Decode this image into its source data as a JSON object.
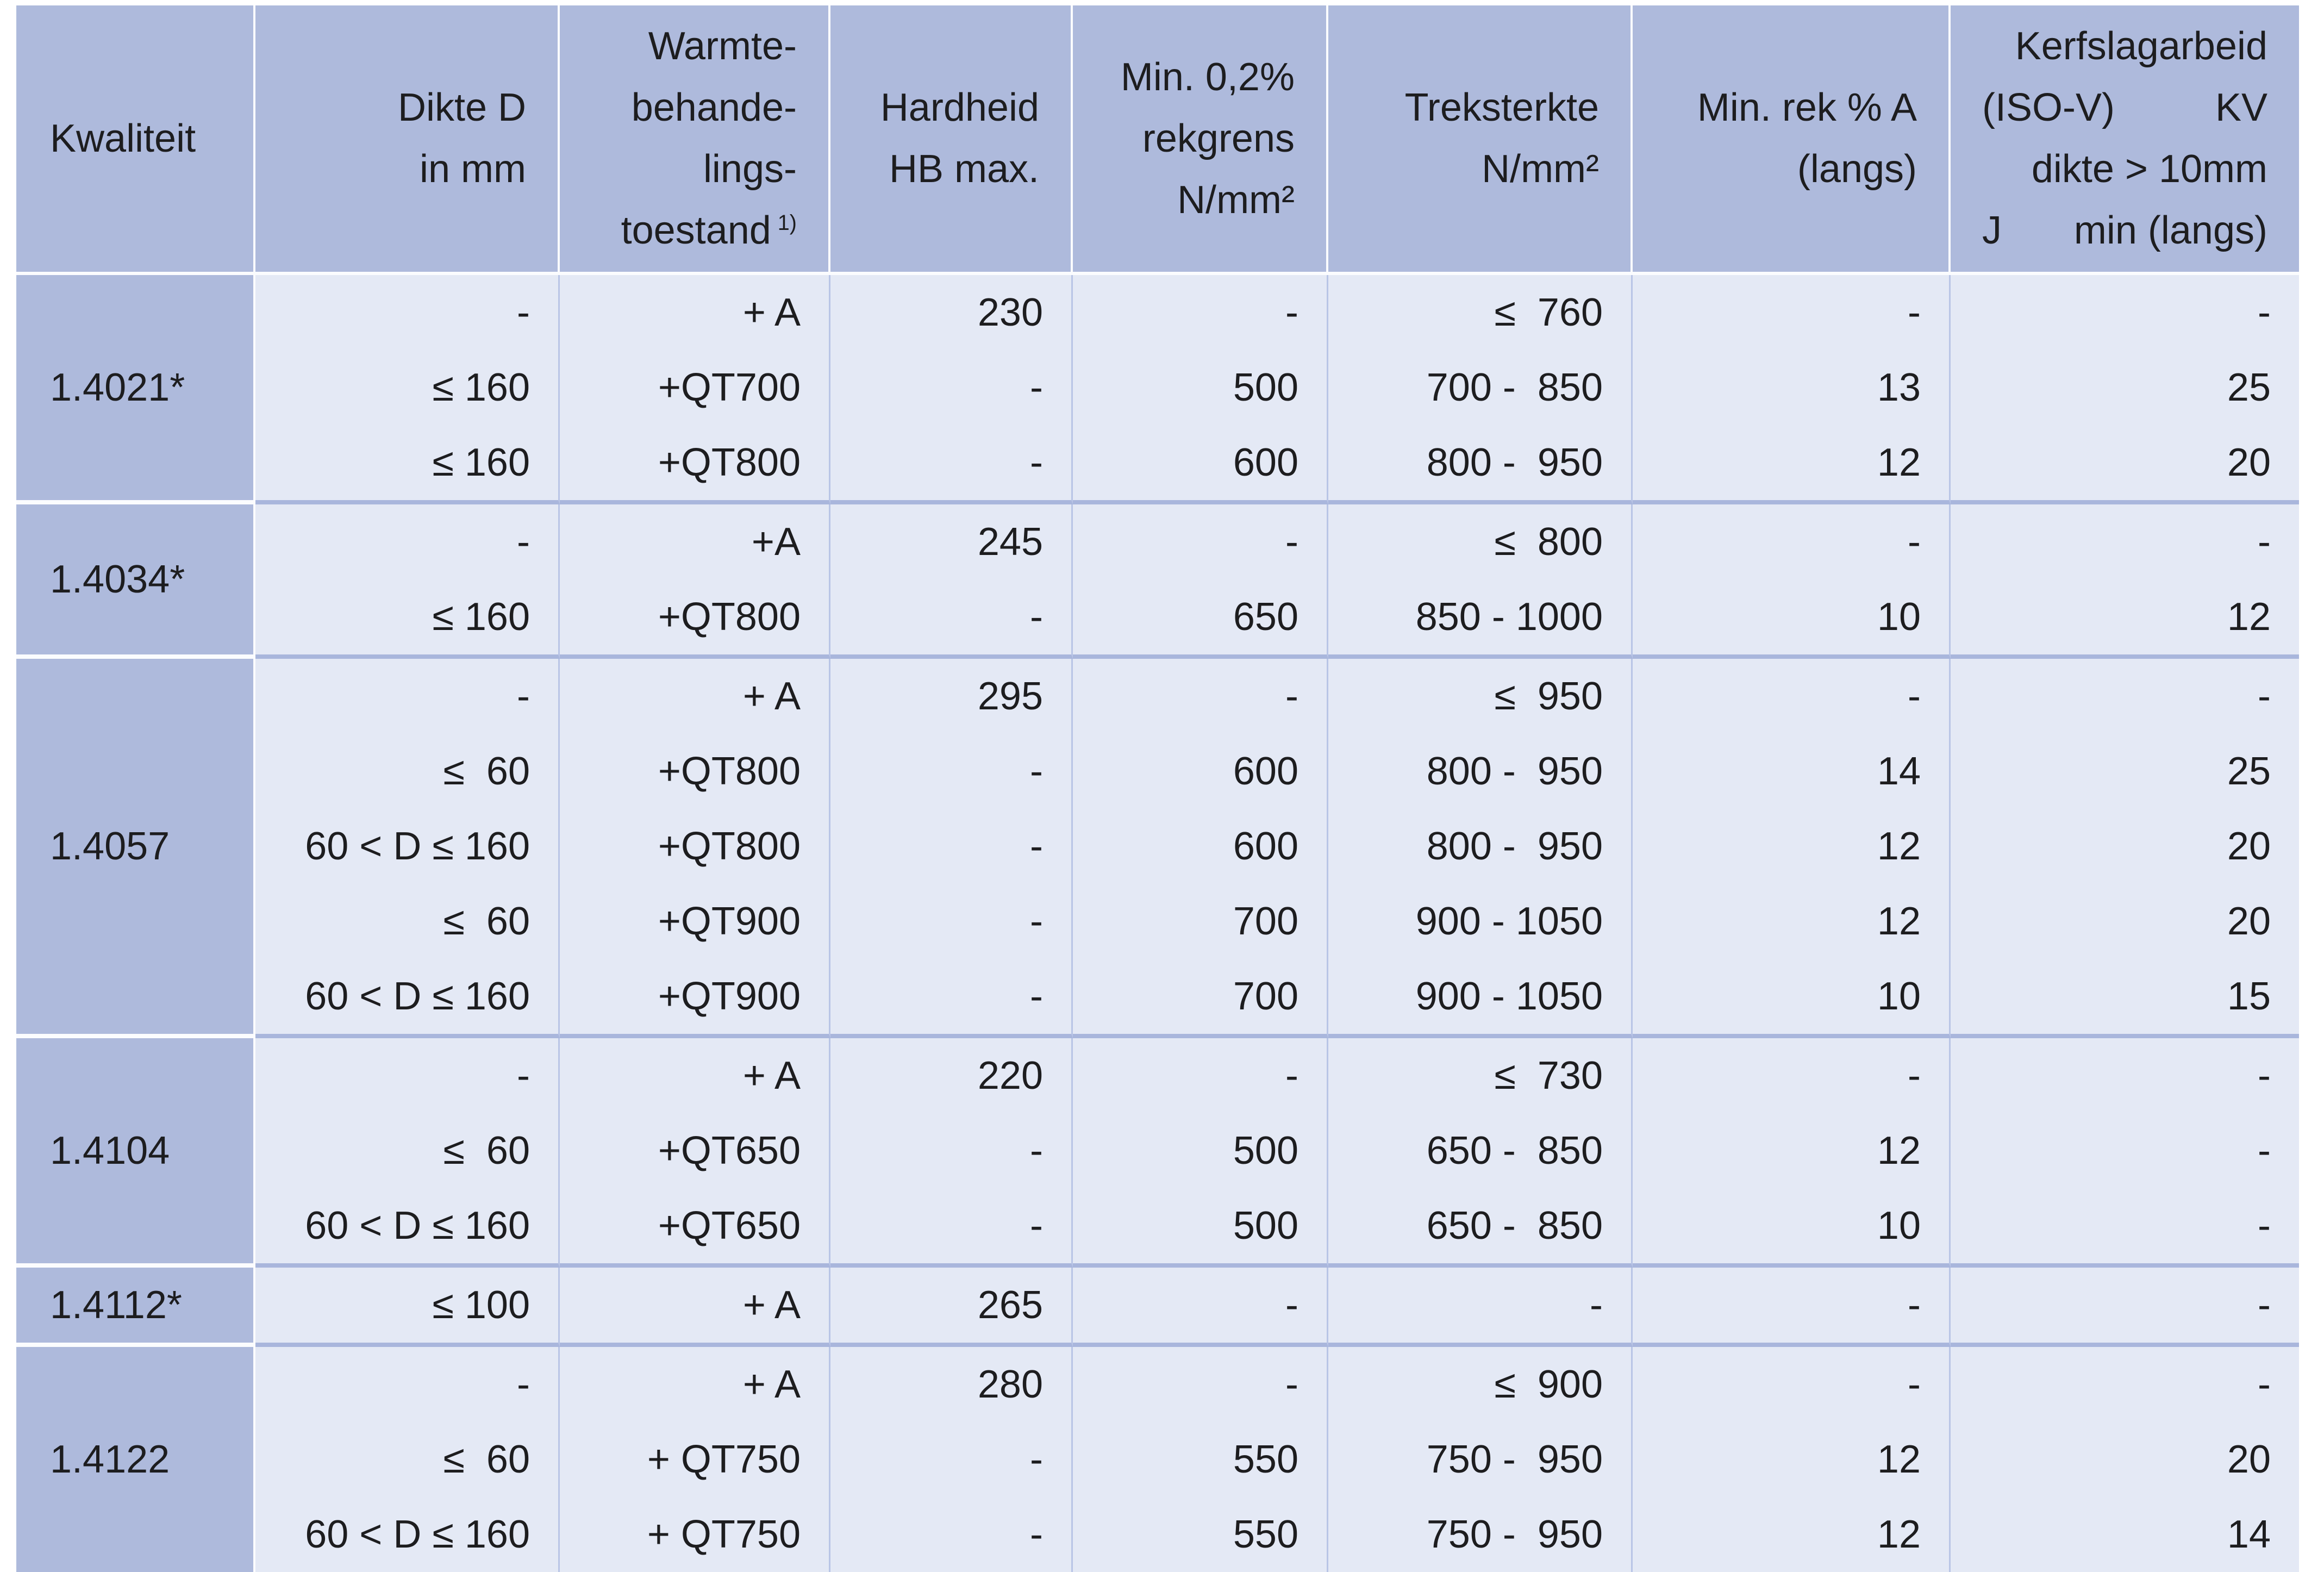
{
  "colors": {
    "header_bg": "#aebadc",
    "body_bg": "#e4e9f5",
    "group_separator": "#a9b6dc",
    "grid_line": "#b9c5e6",
    "white_line": "#fbfcfe",
    "text": "#1d1d1f",
    "page_bg": "#ffffff"
  },
  "header": {
    "kwaliteit": "Kwaliteit",
    "dikte_lines": [
      "Dikte D",
      "in mm"
    ],
    "warmte_lines": [
      "Warmte-",
      "behande-",
      "lings-"
    ],
    "warmte_last": "toestand",
    "warmte_footnote": "1)",
    "hardheid_lines": [
      "Hardheid",
      "HB max."
    ],
    "rekgrens_lines": [
      "Min. 0,2%",
      "rekgrens",
      "N/mm²"
    ],
    "treksterkte_lines": [
      "Treksterkte",
      "N/mm²"
    ],
    "rek_lines": [
      "Min. rek % A",
      "(langs)"
    ],
    "kerfslag": {
      "line1": "Kerfslagarbeid",
      "iso": "(ISO-V)",
      "kv": "KV",
      "line3": "dikte > 10mm",
      "j": "J",
      "min": "min (langs)"
    }
  },
  "table": {
    "column_keys": [
      "dikte",
      "warmte",
      "hardheid",
      "rekgrens",
      "treksterkte",
      "rek",
      "kv"
    ],
    "groups": [
      {
        "kwaliteit": "1.4021*",
        "rows": [
          [
            "-",
            "+ A",
            "230",
            "-",
            "≤  760",
            "-",
            "-"
          ],
          [
            "≤ 160",
            "+QT700",
            "-",
            "500",
            "700 -  850",
            "13",
            "25"
          ],
          [
            "≤ 160",
            "+QT800",
            "-",
            "600",
            "800 -  950",
            "12",
            "20"
          ]
        ]
      },
      {
        "kwaliteit": "1.4034*",
        "rows": [
          [
            "-",
            "+A",
            "245",
            "-",
            "≤  800",
            "-",
            "-"
          ],
          [
            "≤ 160",
            "+QT800",
            "-",
            "650",
            "850 - 1000",
            "10",
            "12"
          ]
        ]
      },
      {
        "kwaliteit": "1.4057",
        "rows": [
          [
            "-",
            "+ A",
            "295",
            "-",
            "≤  950",
            "-",
            "-"
          ],
          [
            "≤  60",
            "+QT800",
            "-",
            "600",
            "800 -  950",
            "14",
            "25"
          ],
          [
            "60 < D ≤ 160",
            "+QT800",
            "-",
            "600",
            "800 -  950",
            "12",
            "20"
          ],
          [
            "≤  60",
            "+QT900",
            "-",
            "700",
            "900 - 1050",
            "12",
            "20"
          ],
          [
            "60 < D ≤ 160",
            "+QT900",
            "-",
            "700",
            "900 - 1050",
            "10",
            "15"
          ]
        ]
      },
      {
        "kwaliteit": "1.4104",
        "rows": [
          [
            "-",
            "+ A",
            "220",
            "-",
            "≤  730",
            "-",
            "-"
          ],
          [
            "≤  60",
            "+QT650",
            "-",
            "500",
            "650 -  850",
            "12",
            "-"
          ],
          [
            "60 < D ≤ 160",
            "+QT650",
            "-",
            "500",
            "650 -  850",
            "10",
            "-"
          ]
        ]
      },
      {
        "kwaliteit": "1.4112*",
        "rows": [
          [
            "≤ 100",
            "+ A",
            "265",
            "-",
            "-",
            "-",
            "-"
          ]
        ]
      },
      {
        "kwaliteit": "1.4122",
        "rows": [
          [
            "-",
            "+ A",
            "280",
            "-",
            "≤  900",
            "-",
            "-"
          ],
          [
            "≤  60",
            "+ QT750",
            "-",
            "550",
            "750 -  950",
            "12",
            "20"
          ],
          [
            "60 < D ≤ 160",
            "+ QT750",
            "-",
            "550",
            "750 -  950",
            "12",
            "14"
          ]
        ]
      }
    ]
  }
}
